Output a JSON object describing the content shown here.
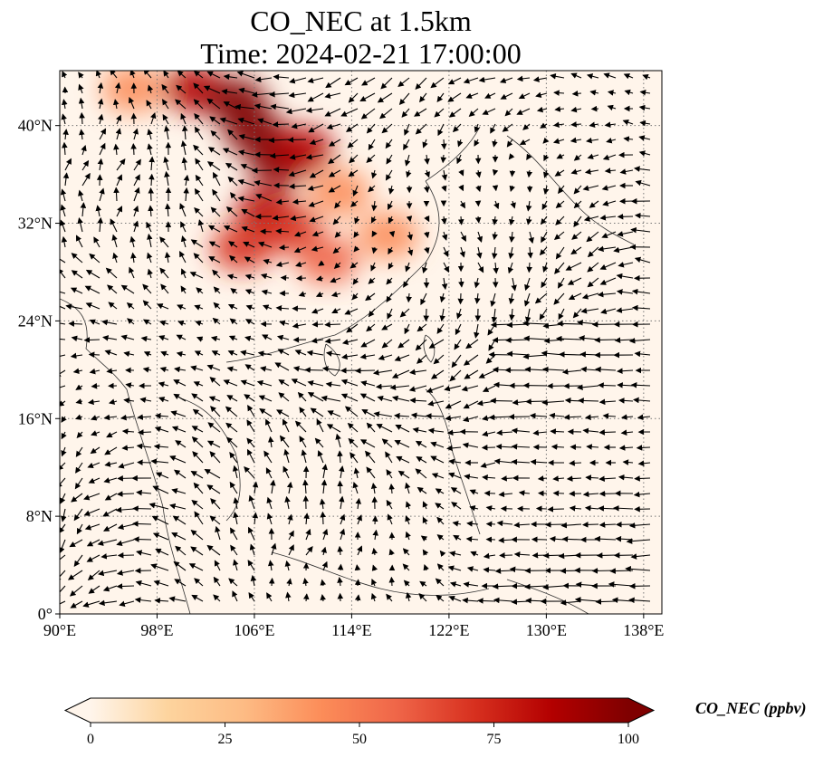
{
  "title": {
    "line1": "CO_NEC at 1.5km",
    "line2": "Time: 2024-02-21 17:00:00"
  },
  "map": {
    "lon_range": [
      90,
      139.5
    ],
    "lat_range": [
      0,
      44.5
    ],
    "lon_ticks": [
      {
        "value": 90,
        "label": "90°E"
      },
      {
        "value": 98,
        "label": "98°E"
      },
      {
        "value": 106,
        "label": "106°E"
      },
      {
        "value": 114,
        "label": "114°E"
      },
      {
        "value": 122,
        "label": "122°E"
      },
      {
        "value": 130,
        "label": "130°E"
      },
      {
        "value": 138,
        "label": "138°E"
      }
    ],
    "lat_ticks": [
      {
        "value": 0,
        "label": "0°"
      },
      {
        "value": 8,
        "label": "8°N"
      },
      {
        "value": 16,
        "label": "16°N"
      },
      {
        "value": 24,
        "label": "24°N"
      },
      {
        "value": 32,
        "label": "32°N"
      },
      {
        "value": 40,
        "label": "40°N"
      }
    ],
    "gridlines": true,
    "background_color": "#fff5eb",
    "plume_color_high": "#7f0000"
  },
  "colorbar": {
    "label": "CO_NEC (ppbv)",
    "ticks": [
      {
        "value": 0,
        "label": "0"
      },
      {
        "value": 25,
        "label": "25"
      },
      {
        "value": 50,
        "label": "50"
      },
      {
        "value": 75,
        "label": "75"
      },
      {
        "value": 100,
        "label": "100"
      }
    ],
    "range": [
      0,
      100
    ],
    "extend": "both",
    "colormap": [
      "#fff5eb",
      "#fdd49e",
      "#fdbb84",
      "#fc8d59",
      "#ef6548",
      "#d7301f",
      "#b30000",
      "#7f0000"
    ]
  },
  "plume": [
    {
      "lon": 101,
      "lat": 43,
      "value": 80
    },
    {
      "lon": 104.5,
      "lat": 42,
      "value": 95
    },
    {
      "lon": 106,
      "lat": 39.5,
      "value": 100
    },
    {
      "lon": 108,
      "lat": 37,
      "value": 95
    },
    {
      "lon": 110,
      "lat": 38,
      "value": 85
    },
    {
      "lon": 107,
      "lat": 33,
      "value": 80
    },
    {
      "lon": 109,
      "lat": 31.5,
      "value": 75
    },
    {
      "lon": 105,
      "lat": 30,
      "value": 70
    },
    {
      "lon": 112,
      "lat": 29,
      "value": 55
    },
    {
      "lon": 117,
      "lat": 31,
      "value": 40
    },
    {
      "lon": 96,
      "lat": 43,
      "value": 40
    },
    {
      "lon": 113,
      "lat": 34.5,
      "value": 45
    }
  ]
}
